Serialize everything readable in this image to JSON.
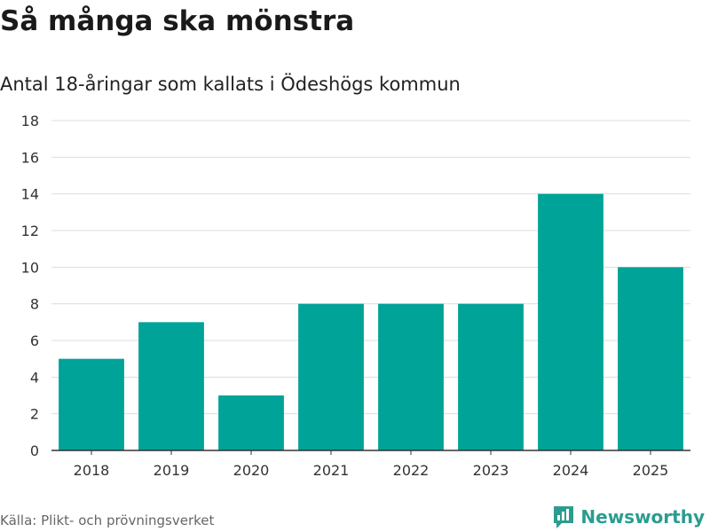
{
  "title": "Så många ska mönstra",
  "subtitle": "Antal 18-åringar som kallats i Ödeshögs kommun",
  "source": "Källa: Plikt- och prövningsverket",
  "brand": {
    "name": "Newsworthy",
    "icon": "newsworthy-logo-icon",
    "color": "#2a9d8f"
  },
  "colors": {
    "bar": "#00a398",
    "grid": "#dddddd",
    "axis": "#333333"
  },
  "chart_data": {
    "type": "bar",
    "title": "Så många ska mönstra",
    "subtitle": "Antal 18-åringar som kallats i Ödeshögs kommun",
    "xlabel": "",
    "ylabel": "",
    "categories": [
      "2018",
      "2019",
      "2020",
      "2021",
      "2022",
      "2023",
      "2024",
      "2025"
    ],
    "values": [
      5,
      7,
      3,
      8,
      8,
      8,
      14,
      10
    ],
    "ylim": [
      0,
      18
    ],
    "yticks": [
      0,
      2,
      4,
      6,
      8,
      10,
      12,
      14,
      16,
      18
    ],
    "grid": true,
    "legend": "none"
  }
}
